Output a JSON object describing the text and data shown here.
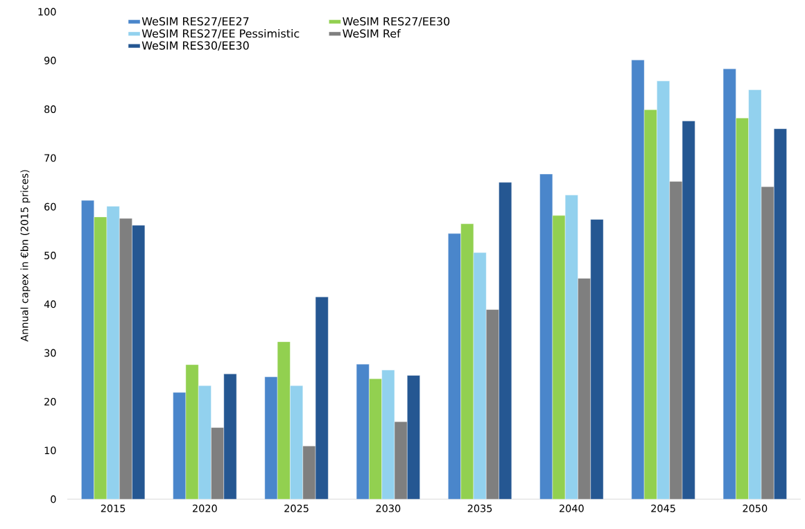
{
  "chart_data": {
    "type": "bar",
    "ylabel": "Annual capex in €bn (2015 prices)",
    "categories": [
      "2015",
      "2020",
      "2025",
      "2030",
      "2035",
      "2040",
      "2045",
      "2050"
    ],
    "series": [
      {
        "name": "WeSIM RES27/EE27",
        "color": "#4a86cb",
        "values": [
          61.3,
          21.9,
          25.1,
          27.7,
          54.5,
          66.7,
          90.1,
          88.3
        ]
      },
      {
        "name": "WeSIM RES27/EE30",
        "color": "#92d050",
        "values": [
          57.9,
          27.6,
          32.3,
          24.7,
          56.5,
          58.2,
          79.9,
          78.2
        ]
      },
      {
        "name": "WeSIM RES27/EE Pessimistic",
        "color": "#92d1ee",
        "values": [
          60.1,
          23.3,
          23.3,
          26.5,
          50.6,
          62.4,
          85.8,
          84.0
        ]
      },
      {
        "name": "WeSIM Ref",
        "color": "#7f7f7f",
        "values": [
          57.6,
          14.7,
          10.9,
          15.9,
          38.9,
          45.3,
          65.2,
          64.1
        ]
      },
      {
        "name": "WeSIM RES30/EE30",
        "color": "#255792",
        "values": [
          56.2,
          25.7,
          41.5,
          25.4,
          65.0,
          57.4,
          77.6,
          76.0
        ]
      }
    ],
    "ylim": [
      0,
      100
    ],
    "yticks": [
      0,
      10,
      20,
      30,
      40,
      50,
      60,
      70,
      80,
      90,
      100
    ],
    "legend": "top"
  }
}
